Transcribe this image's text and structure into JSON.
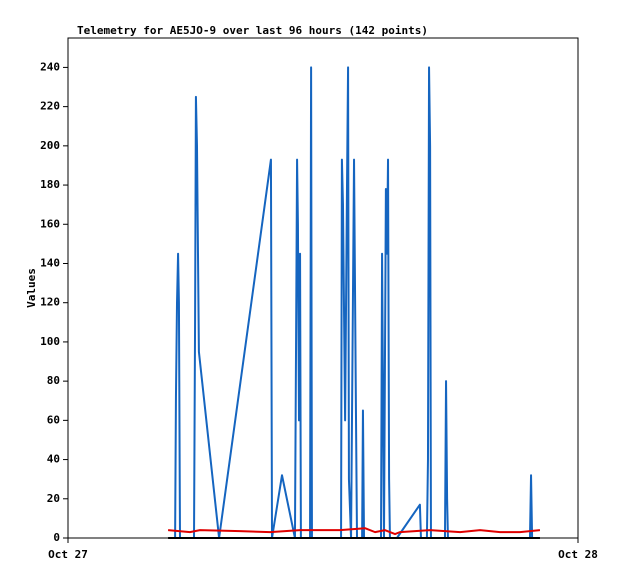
{
  "chart_data": {
    "type": "line",
    "title": "Telemetry for AE5JO-9 over last 96 hours (142 points)",
    "y_label": "Values",
    "xlim": [
      0,
      24
    ],
    "xticks": [
      {
        "value": 0,
        "label": "Oct 27"
      },
      {
        "value": 24,
        "label": "Oct 28"
      }
    ],
    "ylim": [
      0,
      255
    ],
    "yticks": [
      0,
      20,
      40,
      60,
      80,
      100,
      120,
      140,
      160,
      180,
      200,
      220,
      240
    ],
    "grid": false,
    "series": [
      {
        "color": "#1565c0",
        "x": [
          4.8,
          5.04,
          5.08,
          5.13,
          5.18,
          5.22,
          5.27,
          5.93,
          5.98,
          6.02,
          6.07,
          6.16,
          7.11,
          9.55,
          9.6,
          10.07,
          10.68,
          10.73,
          10.78,
          10.82,
          10.87,
          10.92,
          10.96,
          11.39,
          11.44,
          11.48,
          12.85,
          12.89,
          12.94,
          13.04,
          13.13,
          13.18,
          13.22,
          13.32,
          13.46,
          13.55,
          13.6,
          13.84,
          13.88,
          13.93,
          14.73,
          14.78,
          14.87,
          14.96,
          15.01,
          15.06,
          15.11,
          15.15,
          15.48,
          16.56,
          16.61,
          16.89,
          16.94,
          16.99,
          17.04,
          17.08,
          17.74,
          17.79,
          17.84,
          17.88,
          21.74,
          21.79,
          21.84
        ],
        "values": [
          0,
          0,
          72,
          120,
          145,
          120,
          0,
          0,
          110,
          225,
          200,
          95,
          0,
          193,
          0,
          32,
          0,
          95,
          193,
          160,
          60,
          145,
          0,
          0,
          240,
          0,
          0,
          193,
          170,
          60,
          180,
          240,
          30,
          0,
          193,
          65,
          0,
          0,
          65,
          0,
          0,
          145,
          0,
          178,
          145,
          193,
          30,
          0,
          0,
          17,
          0,
          0,
          40,
          240,
          200,
          0,
          0,
          80,
          20,
          0,
          0,
          32,
          0
        ]
      },
      {
        "color": "#e00000",
        "x": [
          4.71,
          5.74,
          6.21,
          8.09,
          9.51,
          10.92,
          12.8,
          13.98,
          14.45,
          14.92,
          15.39,
          15.62,
          17.04,
          18.45,
          19.39,
          20.33,
          21.27,
          22.21
        ],
        "values": [
          4,
          3,
          4,
          3.5,
          3,
          4,
          4,
          5,
          3,
          4,
          2,
          3,
          4,
          3,
          4,
          3,
          3,
          4
        ]
      },
      {
        "color": "#000000",
        "x": [
          4.71,
          22.21
        ],
        "values": [
          0,
          0
        ]
      }
    ]
  }
}
